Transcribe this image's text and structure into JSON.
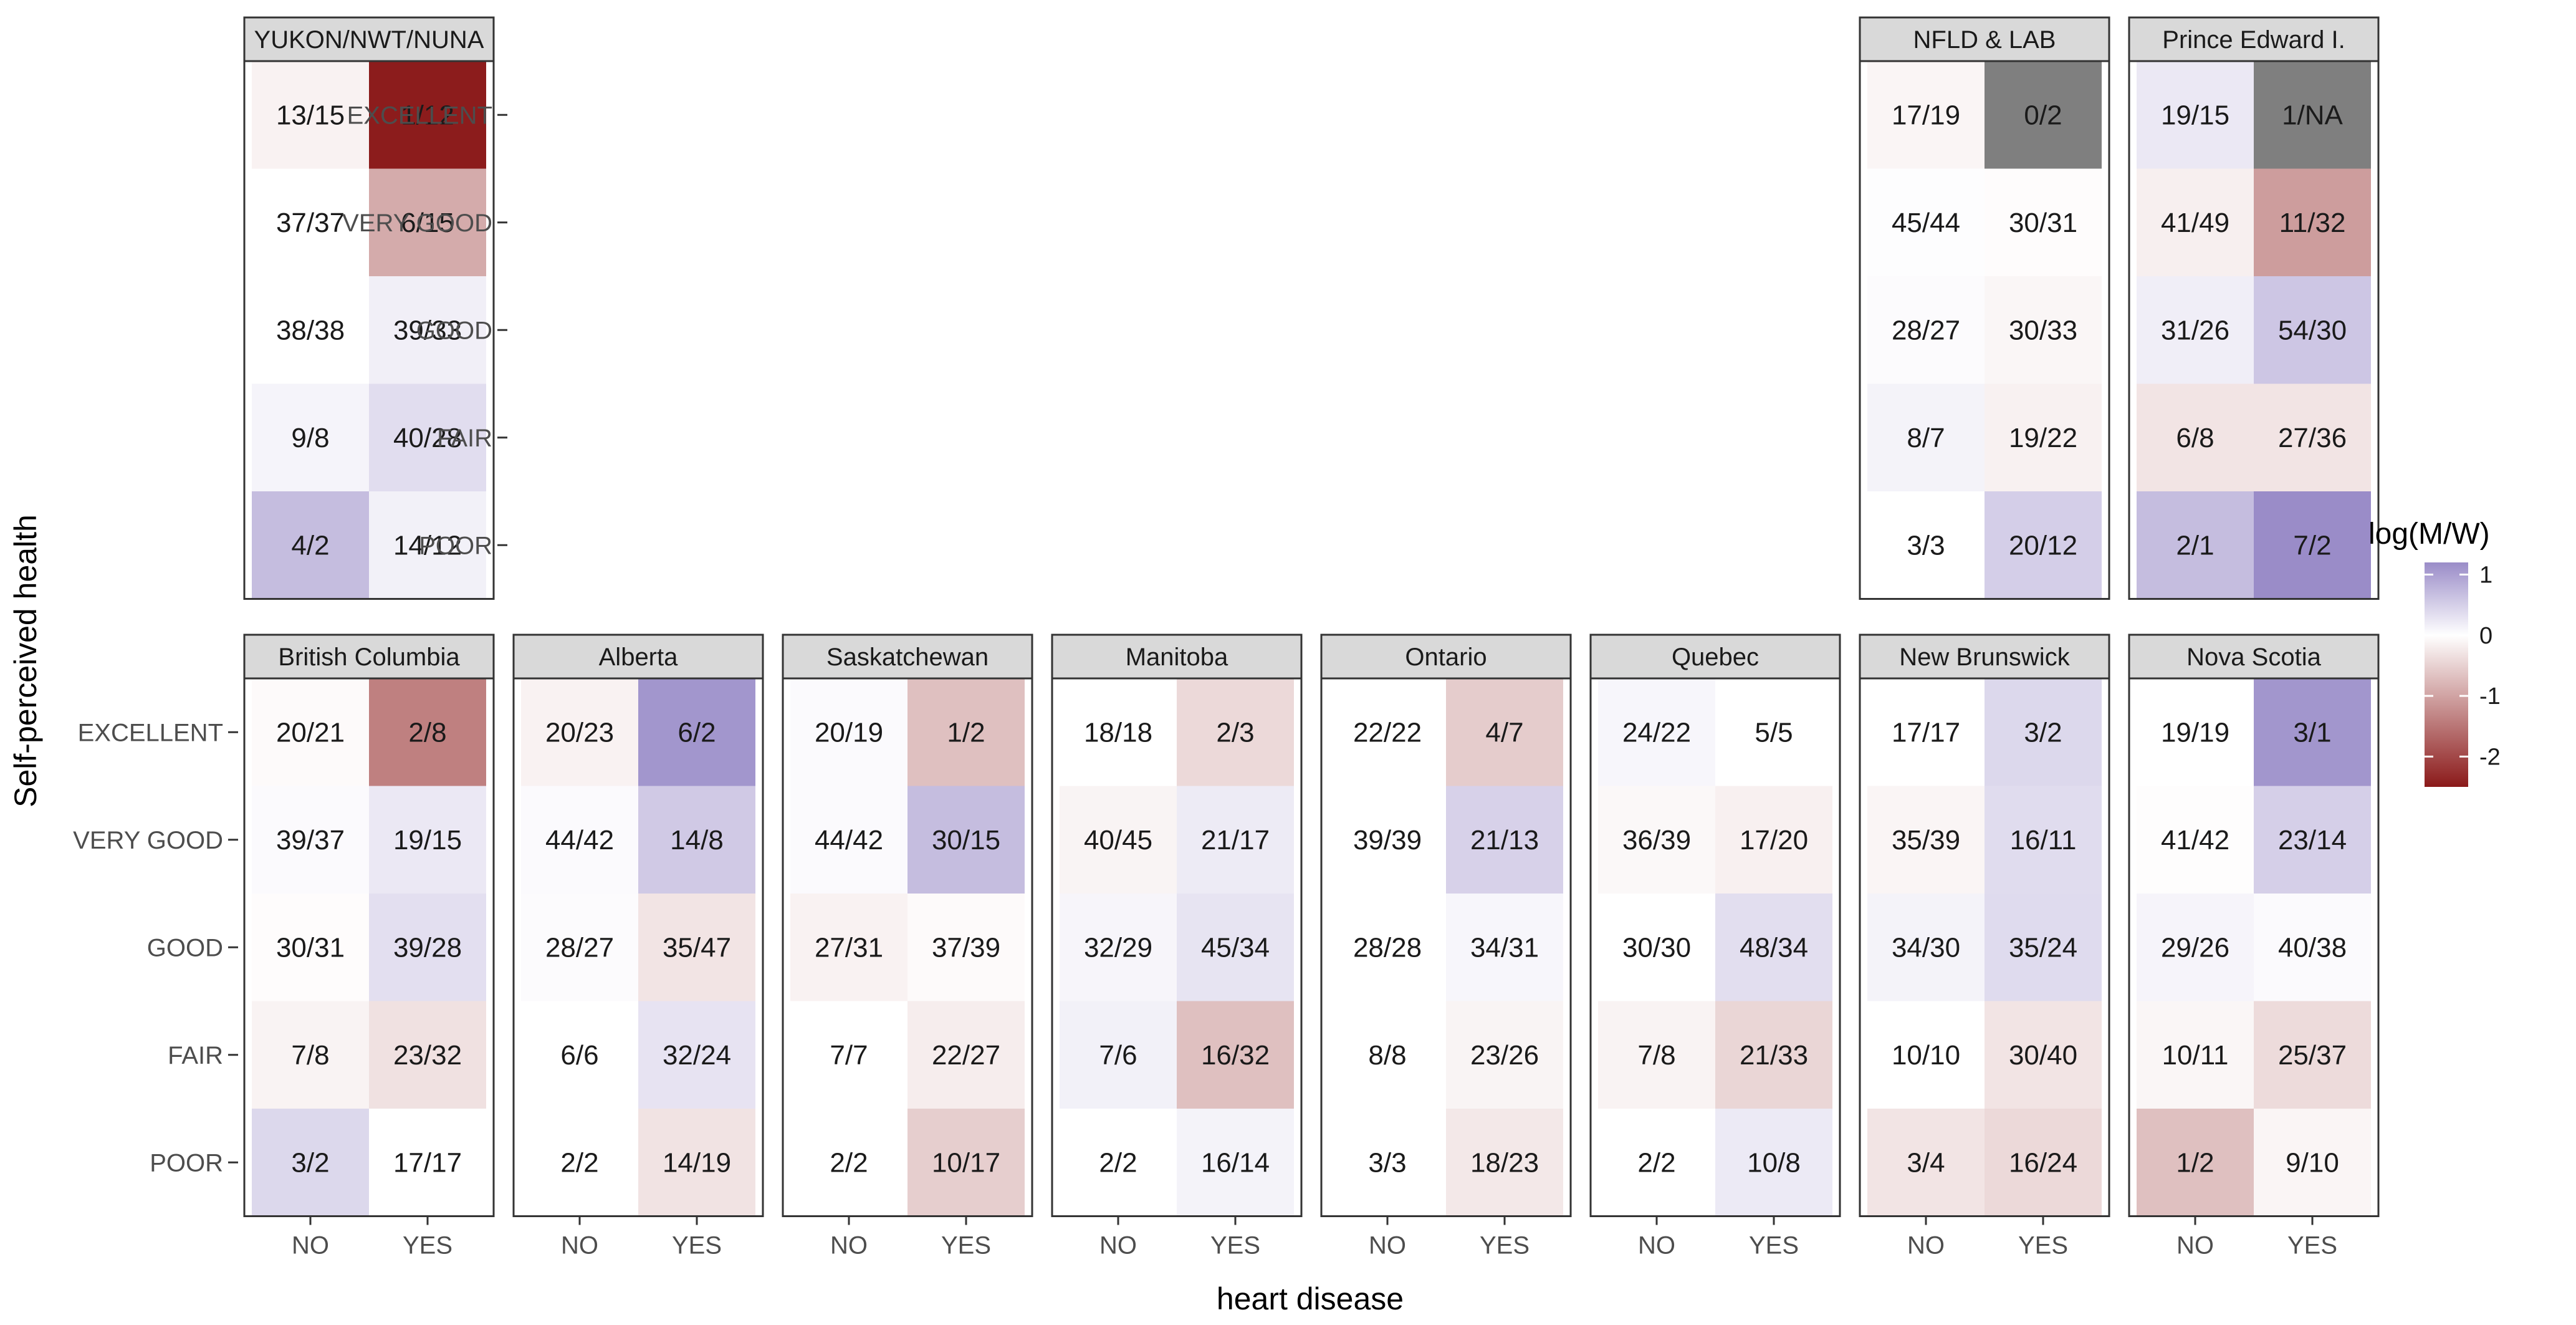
{
  "chart_data": {
    "type": "heatmap",
    "xlabel": "heart disease",
    "ylabel": "Self-perceived health",
    "x_categories": [
      "NO",
      "YES"
    ],
    "y_categories": [
      "EXCELLENT",
      "VERY GOOD",
      "GOOD",
      "FAIR",
      "POOR"
    ],
    "legend": {
      "title": "log(M/W)",
      "ticks": [
        "1",
        "0",
        "-1",
        "-2"
      ],
      "tick_values": [
        1,
        0,
        -1,
        -2
      ],
      "range": [
        -2.5,
        1.2
      ],
      "low_color": "#8b1a1a",
      "mid_color": "#ffffff",
      "high_color": "#9a8cc8",
      "na_color": "#7f7f7f",
      "placement": "right"
    },
    "panels": [
      {
        "name": "YUKON/NWT/NUNA",
        "labels": [
          [
            "13/15",
            "1/12"
          ],
          [
            "37/37",
            "6/15"
          ],
          [
            "38/38",
            "39/33"
          ],
          [
            "9/8",
            "40/28"
          ],
          [
            "4/2",
            "14/12"
          ]
        ],
        "values": [
          [
            -0.14,
            -2.48
          ],
          [
            0,
            -0.92
          ],
          [
            0,
            0.17
          ],
          [
            0.12,
            0.36
          ],
          [
            0.69,
            0.15
          ]
        ]
      },
      {
        "name": "NFLD & LAB",
        "labels": [
          [
            "17/19",
            "0/2"
          ],
          [
            "45/44",
            "30/31"
          ],
          [
            "28/27",
            "30/33"
          ],
          [
            "8/7",
            "19/22"
          ],
          [
            "3/3",
            "20/12"
          ]
        ],
        "values": [
          [
            -0.11,
            null
          ],
          [
            0.02,
            -0.03
          ],
          [
            0.04,
            -0.1
          ],
          [
            0.13,
            -0.15
          ],
          [
            0,
            0.51
          ]
        ]
      },
      {
        "name": "Prince Edward I.",
        "labels": [
          [
            "19/15",
            "1/NA"
          ],
          [
            "41/49",
            "11/32"
          ],
          [
            "31/26",
            "54/30"
          ],
          [
            "6/8",
            "27/36"
          ],
          [
            "2/1",
            "7/2"
          ]
        ],
        "values": [
          [
            0.24,
            null
          ],
          [
            -0.18,
            -1.07
          ],
          [
            0.18,
            0.59
          ],
          [
            -0.29,
            -0.29
          ],
          [
            0.69,
            1.25
          ]
        ]
      },
      {
        "name": "British Columbia",
        "labels": [
          [
            "20/21",
            "2/8"
          ],
          [
            "39/37",
            "19/15"
          ],
          [
            "30/31",
            "39/28"
          ],
          [
            "7/8",
            "23/32"
          ],
          [
            "3/2",
            "17/17"
          ]
        ],
        "values": [
          [
            -0.05,
            -1.39
          ],
          [
            0.05,
            0.24
          ],
          [
            -0.03,
            0.33
          ],
          [
            -0.13,
            -0.33
          ],
          [
            0.41,
            0
          ]
        ]
      },
      {
        "name": "Alberta",
        "labels": [
          [
            "20/23",
            "6/2"
          ],
          [
            "44/42",
            "14/8"
          ],
          [
            "28/27",
            "35/47"
          ],
          [
            "6/6",
            "32/24"
          ],
          [
            "2/2",
            "14/19"
          ]
        ],
        "values": [
          [
            -0.14,
            1.1
          ],
          [
            0.05,
            0.56
          ],
          [
            0.04,
            -0.29
          ],
          [
            0,
            0.29
          ],
          [
            0,
            -0.31
          ]
        ]
      },
      {
        "name": "Saskatchewan",
        "labels": [
          [
            "20/19",
            "1/2"
          ],
          [
            "44/42",
            "30/15"
          ],
          [
            "27/31",
            "37/39"
          ],
          [
            "7/7",
            "22/27"
          ],
          [
            "2/2",
            "10/17"
          ]
        ],
        "values": [
          [
            0.05,
            -0.69
          ],
          [
            0.05,
            0.69
          ],
          [
            -0.14,
            -0.05
          ],
          [
            0,
            -0.2
          ],
          [
            0,
            -0.53
          ]
        ]
      },
      {
        "name": "Manitoba",
        "labels": [
          [
            "18/18",
            "2/3"
          ],
          [
            "40/45",
            "21/17"
          ],
          [
            "32/29",
            "45/34"
          ],
          [
            "7/6",
            "16/32"
          ],
          [
            "2/2",
            "16/14"
          ]
        ],
        "values": [
          [
            0,
            -0.41
          ],
          [
            -0.12,
            0.21
          ],
          [
            0.1,
            0.28
          ],
          [
            0.15,
            -0.69
          ],
          [
            0,
            0.13
          ]
        ]
      },
      {
        "name": "Ontario",
        "labels": [
          [
            "22/22",
            "4/7"
          ],
          [
            "39/39",
            "21/13"
          ],
          [
            "28/28",
            "34/31"
          ],
          [
            "8/8",
            "23/26"
          ],
          [
            "3/3",
            "18/23"
          ]
        ],
        "values": [
          [
            0,
            -0.56
          ],
          [
            0,
            0.48
          ],
          [
            0,
            0.09
          ],
          [
            0,
            -0.12
          ],
          [
            0,
            -0.25
          ]
        ]
      },
      {
        "name": "Quebec",
        "labels": [
          [
            "24/22",
            "5/5"
          ],
          [
            "36/39",
            "17/20"
          ],
          [
            "30/30",
            "48/34"
          ],
          [
            "7/8",
            "21/33"
          ],
          [
            "2/2",
            "10/8"
          ]
        ],
        "values": [
          [
            0.09,
            0
          ],
          [
            -0.08,
            -0.16
          ],
          [
            0,
            0.34
          ],
          [
            -0.13,
            -0.45
          ],
          [
            0,
            0.22
          ]
        ]
      },
      {
        "name": "New Brunswick",
        "labels": [
          [
            "17/17",
            "3/2"
          ],
          [
            "35/39",
            "16/11"
          ],
          [
            "34/30",
            "35/24"
          ],
          [
            "10/10",
            "30/40"
          ],
          [
            "3/4",
            "16/24"
          ]
        ],
        "values": [
          [
            0,
            0.41
          ],
          [
            -0.11,
            0.37
          ],
          [
            0.13,
            0.38
          ],
          [
            0,
            -0.29
          ],
          [
            -0.29,
            -0.41
          ]
        ]
      },
      {
        "name": "Nova Scotia",
        "labels": [
          [
            "19/19",
            "3/1"
          ],
          [
            "41/42",
            "23/14"
          ],
          [
            "29/26",
            "40/38"
          ],
          [
            "10/11",
            "25/37"
          ],
          [
            "1/2",
            "9/10"
          ]
        ],
        "values": [
          [
            0,
            1.1
          ],
          [
            -0.02,
            0.5
          ],
          [
            0.11,
            0.05
          ],
          [
            -0.1,
            -0.39
          ],
          [
            -0.69,
            -0.11
          ]
        ]
      }
    ]
  }
}
